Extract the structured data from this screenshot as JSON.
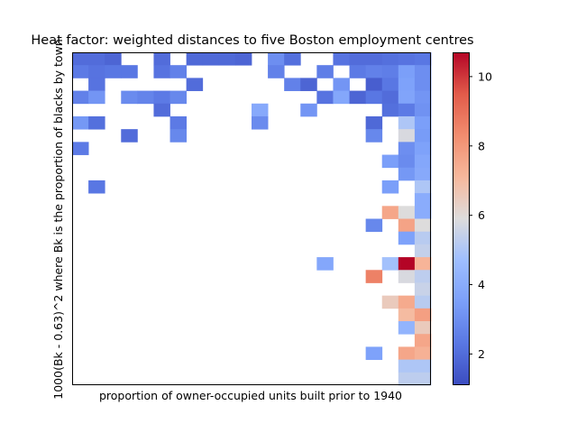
{
  "chart_data": {
    "type": "heatmap",
    "title": "Heat factor: weighted distances to five Boston employment centres",
    "xlabel": "proportion of owner-occupied units built prior to 1940",
    "ylabel": "1000(Bk - 0.63)^2 where Bk is the proportion of blacks by town",
    "grid": false,
    "n_cols": 22,
    "n_rows": 26,
    "colorbar": {
      "colormap": "coolwarm",
      "vmin": 1.1,
      "vmax": 10.7,
      "ticks": [
        2,
        4,
        6,
        8,
        10
      ],
      "tick_labels": [
        "2",
        "4",
        "6",
        "8",
        "10"
      ]
    },
    "cells": [
      {
        "r": 0,
        "c": 0,
        "v": 2.0
      },
      {
        "r": 0,
        "c": 1,
        "v": 2.0
      },
      {
        "r": 0,
        "c": 2,
        "v": 1.8
      },
      {
        "r": 0,
        "c": 5,
        "v": 2.0
      },
      {
        "r": 0,
        "c": 7,
        "v": 1.9
      },
      {
        "r": 0,
        "c": 8,
        "v": 1.9
      },
      {
        "r": 0,
        "c": 9,
        "v": 1.9
      },
      {
        "r": 0,
        "c": 10,
        "v": 1.8
      },
      {
        "r": 0,
        "c": 12,
        "v": 3.0
      },
      {
        "r": 0,
        "c": 13,
        "v": 2.1
      },
      {
        "r": 0,
        "c": 16,
        "v": 2.2
      },
      {
        "r": 0,
        "c": 17,
        "v": 2.0
      },
      {
        "r": 0,
        "c": 18,
        "v": 2.0
      },
      {
        "r": 0,
        "c": 19,
        "v": 2.1
      },
      {
        "r": 0,
        "c": 20,
        "v": 2.2
      },
      {
        "r": 0,
        "c": 21,
        "v": 2.3
      },
      {
        "r": 1,
        "c": 0,
        "v": 2.4
      },
      {
        "r": 1,
        "c": 1,
        "v": 2.2
      },
      {
        "r": 1,
        "c": 2,
        "v": 2.3
      },
      {
        "r": 1,
        "c": 3,
        "v": 2.3
      },
      {
        "r": 1,
        "c": 5,
        "v": 2.2
      },
      {
        "r": 1,
        "c": 6,
        "v": 2.6
      },
      {
        "r": 1,
        "c": 12,
        "v": 2.6
      },
      {
        "r": 1,
        "c": 15,
        "v": 2.5
      },
      {
        "r": 1,
        "c": 17,
        "v": 2.4
      },
      {
        "r": 1,
        "c": 18,
        "v": 2.6
      },
      {
        "r": 1,
        "c": 19,
        "v": 2.5
      },
      {
        "r": 1,
        "c": 20,
        "v": 3.5
      },
      {
        "r": 1,
        "c": 21,
        "v": 3.0
      },
      {
        "r": 2,
        "c": 1,
        "v": 2.2
      },
      {
        "r": 2,
        "c": 7,
        "v": 2.0
      },
      {
        "r": 2,
        "c": 13,
        "v": 2.6
      },
      {
        "r": 2,
        "c": 14,
        "v": 1.8
      },
      {
        "r": 2,
        "c": 16,
        "v": 3.2
      },
      {
        "r": 2,
        "c": 18,
        "v": 1.6
      },
      {
        "r": 2,
        "c": 19,
        "v": 2.3
      },
      {
        "r": 2,
        "c": 20,
        "v": 3.6
      },
      {
        "r": 2,
        "c": 21,
        "v": 3.0
      },
      {
        "r": 3,
        "c": 0,
        "v": 2.6
      },
      {
        "r": 3,
        "c": 1,
        "v": 3.2
      },
      {
        "r": 3,
        "c": 3,
        "v": 2.9
      },
      {
        "r": 3,
        "c": 4,
        "v": 2.7
      },
      {
        "r": 3,
        "c": 5,
        "v": 2.4
      },
      {
        "r": 3,
        "c": 6,
        "v": 2.8
      },
      {
        "r": 3,
        "c": 15,
        "v": 2.2
      },
      {
        "r": 3,
        "c": 16,
        "v": 3.8
      },
      {
        "r": 3,
        "c": 17,
        "v": 1.8
      },
      {
        "r": 3,
        "c": 18,
        "v": 2.3
      },
      {
        "r": 3,
        "c": 19,
        "v": 2.0
      },
      {
        "r": 3,
        "c": 20,
        "v": 3.7
      },
      {
        "r": 3,
        "c": 21,
        "v": 3.2
      },
      {
        "r": 4,
        "c": 5,
        "v": 2.0
      },
      {
        "r": 4,
        "c": 11,
        "v": 3.9
      },
      {
        "r": 4,
        "c": 14,
        "v": 3.2
      },
      {
        "r": 4,
        "c": 19,
        "v": 2.1
      },
      {
        "r": 4,
        "c": 20,
        "v": 2.4
      },
      {
        "r": 4,
        "c": 21,
        "v": 3.1
      },
      {
        "r": 5,
        "c": 0,
        "v": 3.3
      },
      {
        "r": 5,
        "c": 1,
        "v": 2.1
      },
      {
        "r": 5,
        "c": 6,
        "v": 2.4
      },
      {
        "r": 5,
        "c": 11,
        "v": 2.9
      },
      {
        "r": 5,
        "c": 18,
        "v": 1.9
      },
      {
        "r": 5,
        "c": 20,
        "v": 5.0
      },
      {
        "r": 5,
        "c": 21,
        "v": 3.5
      },
      {
        "r": 6,
        "c": 3,
        "v": 2.0
      },
      {
        "r": 6,
        "c": 6,
        "v": 2.8
      },
      {
        "r": 6,
        "c": 18,
        "v": 2.8
      },
      {
        "r": 6,
        "c": 20,
        "v": 5.8
      },
      {
        "r": 6,
        "c": 21,
        "v": 3.4
      },
      {
        "r": 7,
        "c": 0,
        "v": 2.4
      },
      {
        "r": 7,
        "c": 20,
        "v": 3.0
      },
      {
        "r": 7,
        "c": 21,
        "v": 3.6
      },
      {
        "r": 8,
        "c": 19,
        "v": 3.5
      },
      {
        "r": 8,
        "c": 20,
        "v": 2.9
      },
      {
        "r": 8,
        "c": 21,
        "v": 3.8
      },
      {
        "r": 9,
        "c": 20,
        "v": 3.3
      },
      {
        "r": 9,
        "c": 21,
        "v": 3.9
      },
      {
        "r": 10,
        "c": 1,
        "v": 2.3
      },
      {
        "r": 10,
        "c": 19,
        "v": 3.5
      },
      {
        "r": 10,
        "c": 21,
        "v": 5.0
      },
      {
        "r": 11,
        "c": 21,
        "v": 4.0
      },
      {
        "r": 12,
        "c": 19,
        "v": 7.6
      },
      {
        "r": 12,
        "c": 20,
        "v": 5.9
      },
      {
        "r": 12,
        "c": 21,
        "v": 4.0
      },
      {
        "r": 13,
        "c": 18,
        "v": 2.8
      },
      {
        "r": 13,
        "c": 20,
        "v": 7.7
      },
      {
        "r": 13,
        "c": 21,
        "v": 5.9
      },
      {
        "r": 14,
        "c": 20,
        "v": 3.6
      },
      {
        "r": 14,
        "c": 21,
        "v": 5.2
      },
      {
        "r": 15,
        "c": 21,
        "v": 5.4
      },
      {
        "r": 16,
        "c": 15,
        "v": 3.8
      },
      {
        "r": 16,
        "c": 19,
        "v": 4.8
      },
      {
        "r": 16,
        "c": 20,
        "v": 10.7
      },
      {
        "r": 16,
        "c": 21,
        "v": 7.2
      },
      {
        "r": 17,
        "c": 18,
        "v": 8.6
      },
      {
        "r": 17,
        "c": 20,
        "v": 5.8
      },
      {
        "r": 17,
        "c": 21,
        "v": 5.3
      },
      {
        "r": 18,
        "c": 21,
        "v": 5.5
      },
      {
        "r": 19,
        "c": 19,
        "v": 6.5
      },
      {
        "r": 19,
        "c": 20,
        "v": 7.5
      },
      {
        "r": 19,
        "c": 21,
        "v": 5.2
      },
      {
        "r": 20,
        "c": 20,
        "v": 7.0
      },
      {
        "r": 20,
        "c": 21,
        "v": 7.8
      },
      {
        "r": 21,
        "c": 20,
        "v": 4.3
      },
      {
        "r": 21,
        "c": 21,
        "v": 6.5
      },
      {
        "r": 22,
        "c": 21,
        "v": 7.6
      },
      {
        "r": 23,
        "c": 18,
        "v": 3.6
      },
      {
        "r": 23,
        "c": 20,
        "v": 7.6
      },
      {
        "r": 23,
        "c": 21,
        "v": 7.3
      },
      {
        "r": 24,
        "c": 20,
        "v": 5.0
      },
      {
        "r": 24,
        "c": 21,
        "v": 5.0
      },
      {
        "r": 25,
        "c": 20,
        "v": 5.3
      },
      {
        "r": 25,
        "c": 21,
        "v": 5.3
      }
    ]
  }
}
